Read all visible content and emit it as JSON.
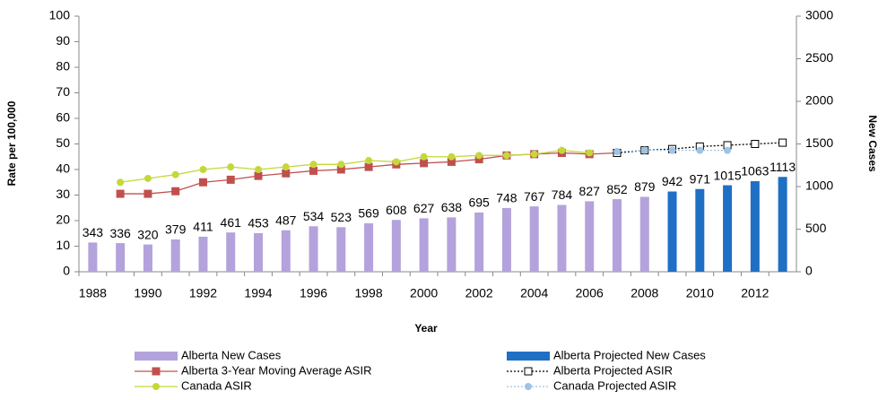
{
  "chart_data": {
    "type": "bar-line",
    "x_label": "Year",
    "y_label": "Rate per 100,000",
    "y2_label": "New Cases",
    "categories": [
      "1988",
      null,
      "1990",
      null,
      "1992",
      null,
      "1994",
      null,
      "1996",
      null,
      "1998",
      null,
      "2000",
      null,
      "2002",
      null,
      "2004",
      null,
      "2006",
      null,
      "2008",
      null,
      "2010",
      null,
      "2012",
      null
    ],
    "ylim": [
      0,
      100
    ],
    "yticks": [
      0,
      10,
      20,
      30,
      40,
      50,
      60,
      70,
      80,
      90,
      100
    ],
    "y2lim": [
      0,
      3000
    ],
    "y2ticks": [
      0,
      500,
      1000,
      1500,
      2000,
      2500,
      3000
    ],
    "legend": "bottom",
    "series": [
      {
        "name": "Alberta New Cases",
        "kind": "bar",
        "axis": "y2",
        "color": "#b3a2db",
        "labels": true,
        "values": [
          343,
          336,
          320,
          379,
          411,
          461,
          453,
          487,
          534,
          523,
          569,
          608,
          627,
          638,
          695,
          748,
          767,
          784,
          827,
          852,
          879,
          null,
          null,
          null,
          null,
          null
        ]
      },
      {
        "name": "Alberta Projected New Cases",
        "kind": "bar",
        "axis": "y2",
        "color": "#1f6fc5",
        "labels": true,
        "values": [
          null,
          null,
          null,
          null,
          null,
          null,
          null,
          null,
          null,
          null,
          null,
          null,
          null,
          null,
          null,
          null,
          null,
          null,
          null,
          null,
          null,
          942,
          971,
          1015,
          1063,
          1113
        ]
      },
      {
        "name": "Alberta 3-Year Moving Average ASIR",
        "kind": "line",
        "color": "#c0504d",
        "marker": "square",
        "dash": false,
        "values": [
          null,
          30.5,
          30.5,
          31.5,
          35,
          36,
          37.5,
          38.5,
          39.5,
          40,
          41,
          42,
          42.5,
          43,
          44,
          45.5,
          46,
          46.5,
          46,
          46.5,
          null,
          null,
          null,
          null,
          null,
          null
        ]
      },
      {
        "name": "Alberta Projected ASIR",
        "kind": "line",
        "color": "#000000",
        "marker": "open-square",
        "dash": true,
        "values": [
          null,
          null,
          null,
          null,
          null,
          null,
          null,
          null,
          null,
          null,
          null,
          null,
          null,
          null,
          null,
          null,
          null,
          null,
          null,
          46.5,
          47.5,
          48,
          49,
          49.5,
          50,
          50.5
        ]
      },
      {
        "name": "Canada ASIR",
        "kind": "line",
        "color": "#c4d83a",
        "marker": "circle",
        "dash": false,
        "values": [
          null,
          35,
          36.5,
          38,
          40,
          41,
          40,
          41,
          42,
          42,
          43.5,
          43,
          45,
          45,
          45.5,
          45.5,
          46,
          47.5,
          46.5,
          null,
          null,
          null,
          null,
          null,
          null,
          null
        ]
      },
      {
        "name": "Canada Projected ASIR",
        "kind": "line",
        "color": "#9dc3e6",
        "marker": "circle",
        "dash": true,
        "values": [
          null,
          null,
          null,
          null,
          null,
          null,
          null,
          null,
          null,
          null,
          null,
          null,
          null,
          null,
          null,
          null,
          null,
          null,
          null,
          47,
          47.5,
          47.5,
          47.5,
          47.5,
          null,
          null
        ]
      }
    ]
  }
}
